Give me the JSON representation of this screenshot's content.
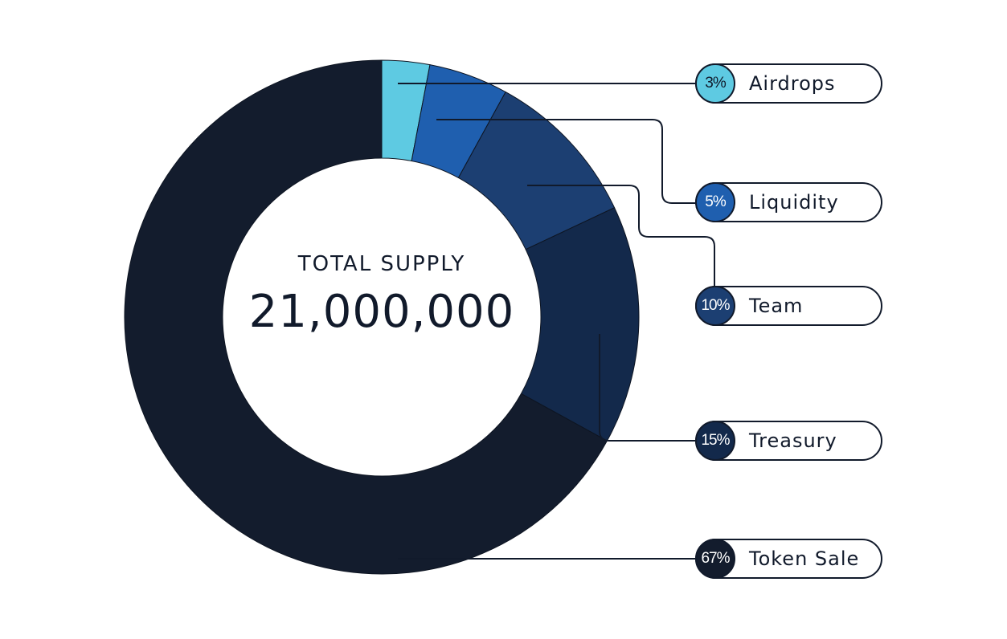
{
  "center": {
    "title": "TOTAL SUPPLY",
    "value": "21,000,000"
  },
  "chart_data": {
    "type": "pie",
    "donut": true,
    "categories": [
      "Airdrops",
      "Liquidity",
      "Team",
      "Treasury",
      "Token Sale"
    ],
    "values": [
      3,
      5,
      10,
      15,
      67
    ],
    "percent_labels": [
      "3%",
      "5%",
      "10%",
      "15%",
      "67%"
    ],
    "colors": [
      "#5ecae2",
      "#1f5faf",
      "#1c3f72",
      "#13294b",
      "#131c2d"
    ],
    "label_colors": [
      "#111a2b",
      "#ffffff",
      "#ffffff",
      "#ffffff",
      "#ffffff"
    ],
    "legend_placement": "right"
  }
}
